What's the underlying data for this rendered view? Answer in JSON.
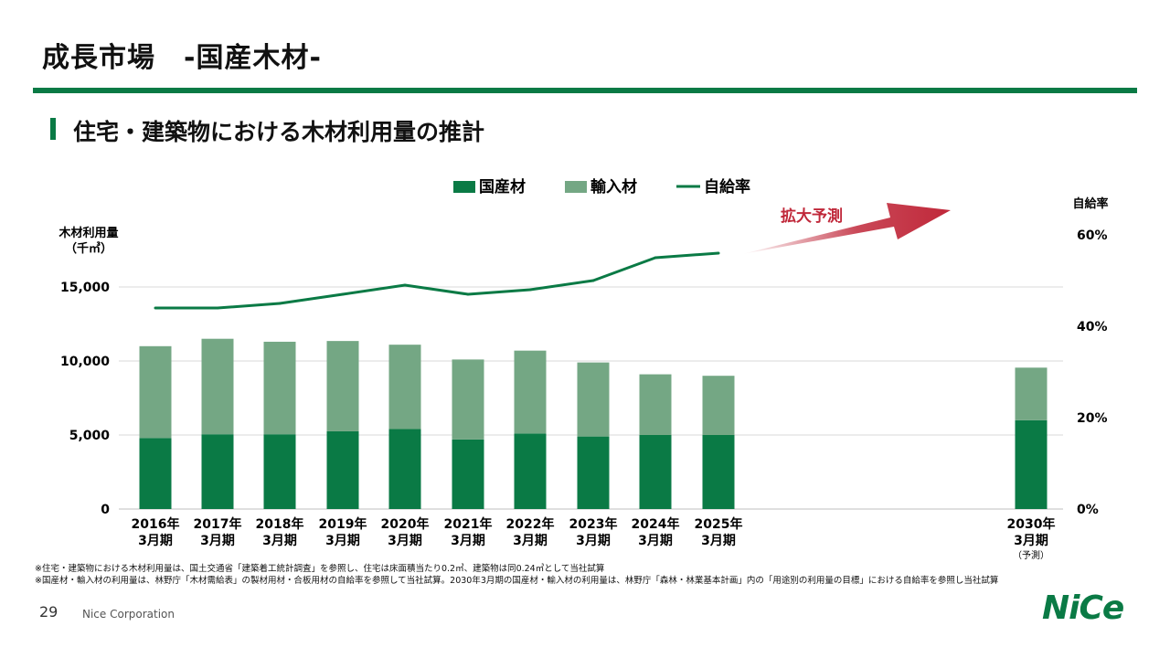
{
  "slide": {
    "title": "成長市場　-国産木材-",
    "section_title": "住宅・建築物における木材利用量の推計",
    "footnotes": [
      "※住宅・建築物における木材利用量は、国土交通省「建築着工統計調査」を参照し、住宅は床面積当たり0.2㎥、建築物は同0.24㎥として当社試算",
      "※国産材・輸入材の利用量は、林野庁「木材需給表」の製材用材・合板用材の自給率を参照して当社試算。2030年3月期の国産材・輸入材の利用量は、林野庁「森林・林業基本計画」内の「用途別の利用量の目標」における自給率を参照し当社試算"
    ],
    "page_number": "29",
    "company": "Nice Corporation",
    "logo_text": "NiCe"
  },
  "chart_data": {
    "type": "bar",
    "stacked": true,
    "categories": [
      [
        "2016年",
        "3月期"
      ],
      [
        "2017年",
        "3月期"
      ],
      [
        "2018年",
        "3月期"
      ],
      [
        "2019年",
        "3月期"
      ],
      [
        "2020年",
        "3月期"
      ],
      [
        "2021年",
        "3月期"
      ],
      [
        "2022年",
        "3月期"
      ],
      [
        "2023年",
        "3月期"
      ],
      [
        "2024年",
        "3月期"
      ],
      [
        "2025年",
        "3月期"
      ],
      [
        "2030年",
        "3月期",
        "（予測）"
      ]
    ],
    "series": [
      {
        "name": "国産材",
        "kind": "bar",
        "color": "#0a7a45",
        "values": [
          4800,
          5050,
          5050,
          5250,
          5400,
          4700,
          5100,
          4900,
          5000,
          5000,
          6000
        ]
      },
      {
        "name": "輸入材",
        "kind": "bar",
        "color": "#74a784",
        "values": [
          6200,
          6450,
          6250,
          6100,
          5700,
          5400,
          5600,
          5000,
          4100,
          4000,
          3550
        ]
      },
      {
        "name": "自給率",
        "kind": "line",
        "axis": "right",
        "color": "#0a7a45",
        "values": [
          44,
          44,
          45,
          47,
          49,
          47,
          48,
          50,
          55,
          56,
          null
        ]
      }
    ],
    "ylabel_left": [
      "木材利用量",
      "（千㎥）"
    ],
    "ylabel_right": "自給率",
    "yticks_left": [
      "0",
      "5,000",
      "10,000",
      "15,000"
    ],
    "yticks_left_values": [
      0,
      5000,
      10000,
      15000
    ],
    "ylim_left": [
      0,
      15000
    ],
    "yticks_right": [
      "0%",
      "20%",
      "40%",
      "60%"
    ],
    "yticks_right_values": [
      0,
      20,
      40,
      60
    ],
    "ylim_right": [
      0,
      60
    ],
    "annotation": "拡大予測",
    "annotation_color": "#c0283a",
    "legend_position": "top"
  }
}
